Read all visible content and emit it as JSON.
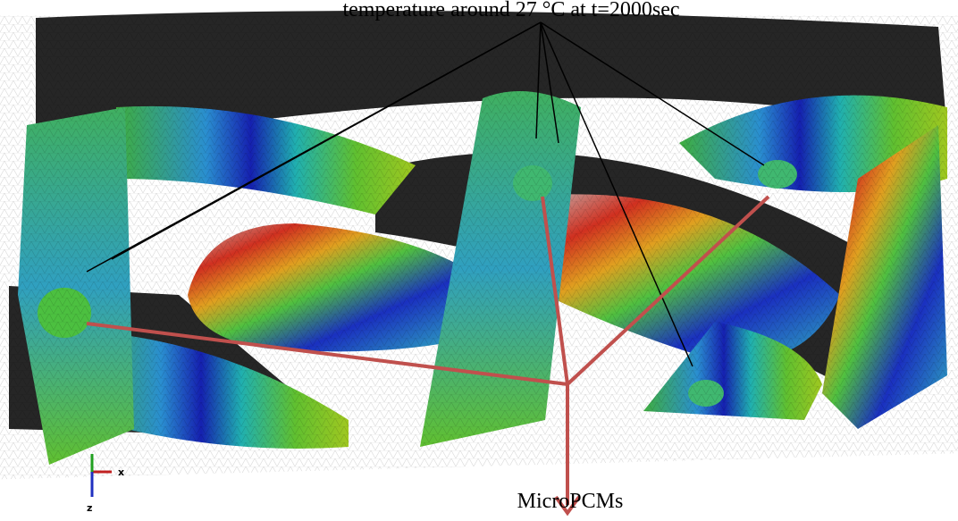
{
  "annotations": {
    "top": "temperature around 27 °C at t=2000sec",
    "bottom": "MicroPCMs"
  },
  "axes": {
    "x": "x",
    "z": "z"
  }
}
